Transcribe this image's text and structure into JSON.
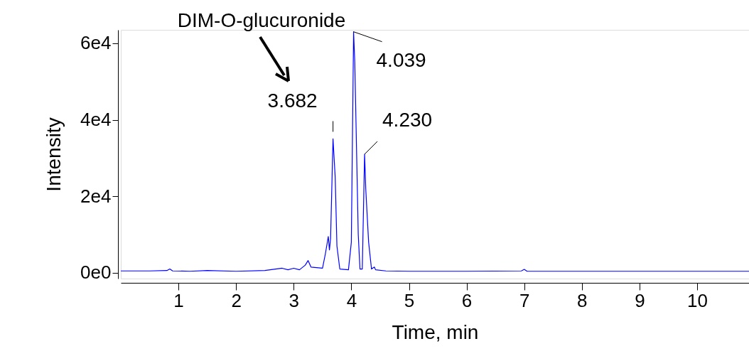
{
  "chart_data": {
    "type": "line",
    "xlabel": "Time, min",
    "ylabel": "Intensity",
    "x": [
      0.0,
      0.5,
      0.8,
      0.85,
      0.9,
      1.2,
      1.5,
      2.0,
      2.5,
      2.8,
      2.9,
      3.0,
      3.1,
      3.2,
      3.25,
      3.3,
      3.5,
      3.55,
      3.6,
      3.62,
      3.64,
      3.682,
      3.72,
      3.75,
      3.8,
      3.95,
      4.0,
      4.039,
      4.06,
      4.12,
      4.15,
      4.19,
      4.23,
      4.25,
      4.3,
      4.35,
      4.4,
      4.42,
      4.6,
      5.0,
      6.0,
      6.95,
      7.0,
      7.05,
      8.0,
      9.0,
      10.0,
      10.9
    ],
    "series": [
      {
        "color": "#0000ff",
        "values": [
          500,
          500,
          600,
          1000,
          500,
          400,
          600,
          400,
          600,
          1200,
          800,
          1200,
          800,
          2000,
          3200,
          1500,
          1200,
          5000,
          9500,
          6000,
          9000,
          35000,
          25000,
          7000,
          1000,
          800,
          8000,
          63000,
          55000,
          10000,
          1000,
          1000,
          31000,
          22000,
          8000,
          1000,
          1500,
          800,
          500,
          400,
          400,
          500,
          900,
          400,
          400,
          400,
          400,
          400
        ]
      }
    ],
    "xlim": [
      0,
      10.9
    ],
    "xticks": [
      1,
      2,
      3,
      4,
      5,
      6,
      7,
      8,
      9,
      10
    ],
    "ylim": [
      -1500,
      63500
    ],
    "yticks": [
      {
        "value": 0,
        "label": "0e0"
      },
      {
        "value": 20000,
        "label": "2e4"
      },
      {
        "value": 40000,
        "label": "4e4"
      },
      {
        "value": 60000,
        "label": "6e4"
      }
    ],
    "annotations": [
      "DIM-O-glucuronide",
      {
        "text": "3.682",
        "x": 3.682,
        "y": 35000
      },
      {
        "text": "4.039",
        "x": 4.039,
        "y": 63000
      },
      {
        "text": "4.230",
        "x": 4.23,
        "y": 31000
      }
    ],
    "grid": false,
    "marker": "none",
    "line_style": "solid"
  }
}
